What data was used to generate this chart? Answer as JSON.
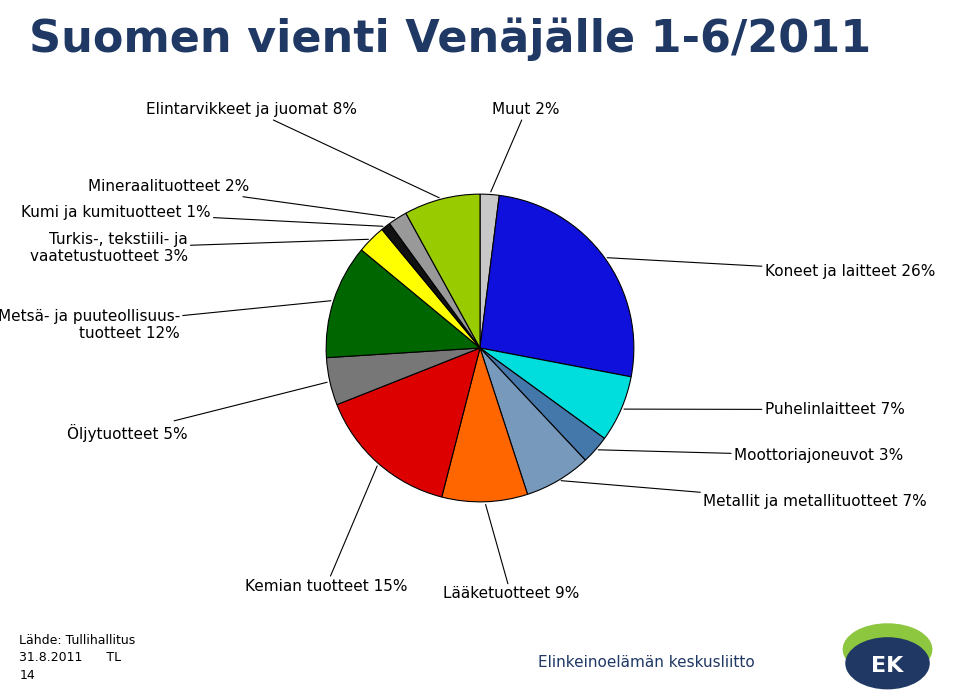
{
  "title": "Suomen vienti Venäjälle 1-6/2011",
  "slices": [
    {
      "label": "Muut 2%",
      "value": 2,
      "color": "#C8C8C8"
    },
    {
      "label": "Koneet ja laitteet 26%",
      "value": 26,
      "color": "#1010DD"
    },
    {
      "label": "Puhelinlaitteet 7%",
      "value": 7,
      "color": "#00DDDD"
    },
    {
      "label": "Moottoriajoneuvot 3%",
      "value": 3,
      "color": "#4477AA"
    },
    {
      "label": "Metallit ja metallituotteet 7%",
      "value": 7,
      "color": "#7799BB"
    },
    {
      "label": "Lääketuotteet 9%",
      "value": 9,
      "color": "#FF6600"
    },
    {
      "label": "Kemian tuotteet 15%",
      "value": 15,
      "color": "#DD0000"
    },
    {
      "label": "Öljytuotteet 5%",
      "value": 5,
      "color": "#777777"
    },
    {
      "label": "Metsä- ja puuteollisuus-\ntuotteet 12%",
      "value": 12,
      "color": "#006600"
    },
    {
      "label": "Turkis-, tekstiili- ja\nvaatetustuotteet 3%",
      "value": 3,
      "color": "#FFFF00"
    },
    {
      "label": "Kumi ja kumituotteet 1%",
      "value": 1,
      "color": "#111111"
    },
    {
      "label": "Mineraalituotteet 2%",
      "value": 2,
      "color": "#999999"
    },
    {
      "label": "Elintarvikkeet ja juomat 8%",
      "value": 8,
      "color": "#99CC00"
    }
  ],
  "title_color": "#1F3864",
  "title_fontsize": 32,
  "label_fontsize": 11,
  "bg_color": "#FFFFFF",
  "footer_lines": [
    "Lähde: Tullihallitus",
    "31.8.2011      TL",
    "14"
  ],
  "ek_text": "Elinkeinoelämän keskusliitto"
}
